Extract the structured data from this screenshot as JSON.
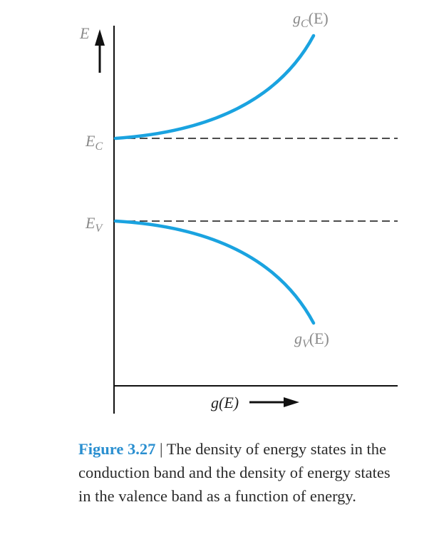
{
  "labels": {
    "y_axis_symbol": "E",
    "ec_main": "E",
    "ec_sub": "C",
    "ev_main": "E",
    "ev_sub": "V",
    "gc_main": "g",
    "gc_sub": "C",
    "gc_arg": "(E)",
    "gv_main": "g",
    "gv_sub": "V",
    "gv_arg": "(E)",
    "x_axis_label": "g(E)"
  },
  "caption": {
    "figure_number": "Figure 3.27",
    "separator": " | ",
    "text": "The density of energy states in the conduction band and the density of energy states in the valence band as a function of energy."
  },
  "colors": {
    "curve": "#1aa3e0",
    "axis": "#111111",
    "dashed": "#111111",
    "label_gray": "#8a8a8a",
    "figure_number": "#2a8fd0"
  }
}
